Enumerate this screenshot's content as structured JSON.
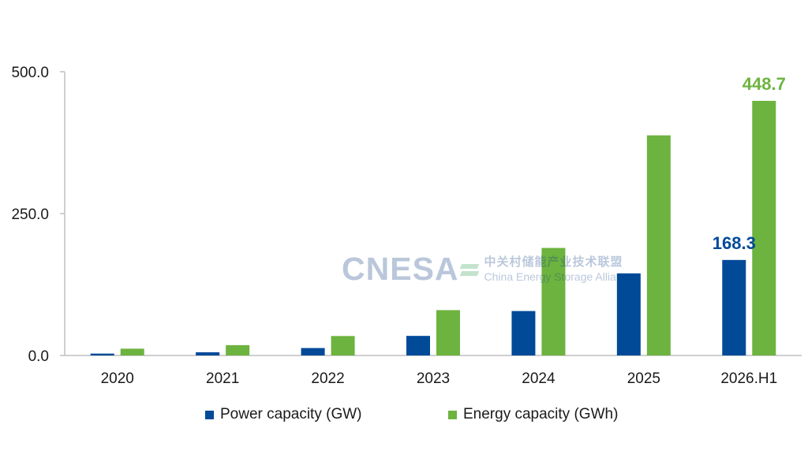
{
  "chart_data": {
    "type": "bar",
    "categories": [
      "2020",
      "2021",
      "2022",
      "2023",
      "2024",
      "2025",
      "2026.H1"
    ],
    "series": [
      {
        "name": "Power capacity (GW)",
        "color": "#004a98",
        "values": [
          3.3,
          5.7,
          13.1,
          34.5,
          78.3,
          144.7,
          168.3
        ]
      },
      {
        "name": "Energy capacity (GWh)",
        "color": "#6db33f",
        "values": [
          12.0,
          18.2,
          34.3,
          79.9,
          189.5,
          387.9,
          448.7
        ]
      }
    ],
    "ylim": [
      0,
      500
    ],
    "yticks": [
      "0.0",
      "250.0",
      "500.0"
    ],
    "ytick_values": [
      0,
      250,
      500
    ],
    "data_labels": [
      {
        "series": 0,
        "index": 6,
        "text": "168.3"
      },
      {
        "series": 1,
        "index": 6,
        "text": "448.7"
      }
    ],
    "legend": {
      "placement": "bottom"
    },
    "grid": false
  },
  "watermark": {
    "logo": "CNESA",
    "name_cn": "中关村储能产业技术联盟",
    "name_en": "China Energy Storage Alliance",
    "icon": "cnesa-logo-icon"
  }
}
